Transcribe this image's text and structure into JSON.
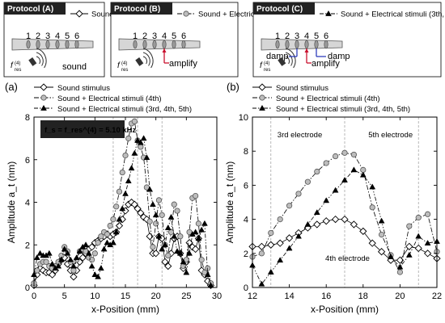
{
  "protocols": [
    {
      "tag": "Protocol (A)",
      "legend": "Sound stimulus",
      "electrodes": [
        "1",
        "2",
        "3",
        "4",
        "5",
        "6"
      ],
      "label_fres": "f",
      "label_fres_sub": "res",
      "label_fres_sup": "(4)",
      "sound_label": "sound"
    },
    {
      "tag": "Protocol (B)",
      "legend": "Sound + Electrical stimuli (4th)",
      "electrodes": [
        "1",
        "2",
        "3",
        "4",
        "5",
        "6"
      ],
      "label_fres": "f",
      "label_fres_sub": "res",
      "label_fres_sup": "(4)",
      "amplify_label": "amplify"
    },
    {
      "tag": "Protocol (C)",
      "legend": "Sound + Electrical stimuli (3th, 4th, 5th)",
      "electrodes": [
        "1",
        "2",
        "3",
        "4",
        "5",
        "6"
      ],
      "label_fres": "f",
      "label_fres_sub": "res",
      "label_fres_sup": "(4)",
      "amplify_label": "amplify",
      "damp_left": "damp",
      "damp_right": "damp"
    }
  ],
  "colors": {
    "amplify": "#c8102e",
    "damp": "#1f2fb8",
    "tag_bg": "#222222",
    "grey_marker": "#bdbdbd"
  },
  "chart_data": [
    {
      "panel": "(a)",
      "type": "line",
      "xlabel": "x-Position (mm)",
      "ylabel": "Amplitude a_t (nm)",
      "xlim": [
        0,
        30
      ],
      "ylim": [
        0,
        8
      ],
      "xticks": [
        0,
        5,
        10,
        15,
        20,
        25,
        30
      ],
      "yticks": [
        0,
        2,
        4,
        6,
        8
      ],
      "freq_label": "f_s = f_res^(4) = 5.10 kHz",
      "vlines": [
        13,
        17,
        21
      ],
      "legend": [
        "Sound stimulus",
        "Sound + Electrical stimuli (4th)",
        "Sound + Electrical stimuli (3rd, 4th, 5th)"
      ],
      "series": [
        {
          "name": "Sound stimulus",
          "marker": "diamond",
          "x": [
            0,
            0.5,
            1,
            1.5,
            2,
            2.5,
            3,
            3.5,
            4,
            4.5,
            5,
            5.5,
            6,
            6.5,
            7,
            7.5,
            8,
            8.5,
            9,
            9.5,
            10,
            10.5,
            11,
            11.5,
            12,
            12.5,
            13,
            13.5,
            14,
            14.5,
            15,
            15.5,
            16,
            16.5,
            17,
            17.5,
            18,
            18.5,
            19,
            19.5,
            20,
            20.5,
            21,
            21.5,
            22,
            22.5,
            23,
            23.5,
            24,
            24.5,
            25,
            25.5,
            26,
            26.5,
            27,
            27.5,
            28,
            28.5,
            29
          ],
          "y": [
            0.1,
            0.6,
            0.9,
            0.8,
            0.7,
            0.7,
            0.6,
            0.8,
            1.1,
            1.3,
            1.4,
            1.1,
            0.8,
            0.5,
            0.8,
            1.2,
            1.4,
            1.6,
            1.8,
            1.9,
            2.1,
            2.2,
            2.3,
            2.4,
            2.5,
            2.4,
            2.5,
            2.6,
            2.9,
            3.2,
            3.6,
            3.9,
            4.0,
            3.9,
            3.7,
            3.5,
            3.3,
            3.2,
            2.4,
            1.6,
            1.6,
            2.4,
            2.3,
            1.2,
            1.0,
            1.6,
            2.3,
            2.4,
            1.6,
            0.9,
            1.2,
            2.1,
            1.9,
            1.8,
            2.3,
            0.8,
            0.6,
            0.3,
            0.1
          ]
        },
        {
          "name": "Sound + Electrical stimuli (4th)",
          "marker": "circle",
          "x": [
            0,
            0.5,
            1,
            1.5,
            2,
            2.5,
            3,
            3.5,
            4,
            4.5,
            5,
            5.5,
            6,
            6.5,
            7,
            7.5,
            8,
            8.5,
            9,
            9.5,
            10,
            10.5,
            11,
            11.5,
            12,
            12.5,
            13,
            13.5,
            14,
            14.5,
            15,
            15.5,
            16,
            16.5,
            17,
            17.5,
            18,
            18.5,
            19,
            19.5,
            20,
            20.5,
            21,
            21.5,
            22,
            22.5,
            23,
            23.5,
            24,
            24.5,
            25,
            25.5,
            26,
            26.5,
            27,
            27.5,
            28,
            28.5,
            29
          ],
          "y": [
            0.2,
            0.8,
            1.1,
            1.2,
            1.2,
            1.0,
            0.9,
            1.0,
            1.2,
            1.5,
            1.9,
            1.7,
            1.2,
            0.8,
            1.3,
            1.7,
            1.8,
            1.7,
            1.4,
            1.3,
            1.6,
            2.1,
            2.4,
            2.6,
            2.5,
            2.9,
            3.2,
            3.8,
            4.5,
            5.4,
            6.2,
            7.0,
            7.7,
            7.8,
            6.9,
            6.6,
            6.1,
            4.7,
            3.1,
            1.9,
            3.0,
            4.1,
            3.4,
            2.0,
            1.5,
            2.6,
            3.9,
            3.6,
            2.4,
            1.0,
            1.3,
            2.6,
            4.2,
            4.3,
            3.0,
            1.3,
            0.7,
            0.9,
            0.2
          ]
        },
        {
          "name": "Sound + Electrical stimuli (3rd, 4th, 5th)",
          "marker": "triangle",
          "x": [
            0,
            0.5,
            1,
            1.5,
            2,
            2.5,
            3,
            3.5,
            4,
            4.5,
            5,
            5.5,
            6,
            6.5,
            7,
            7.5,
            8,
            8.5,
            9,
            9.5,
            10,
            10.5,
            11,
            11.5,
            12,
            12.5,
            13,
            13.5,
            14,
            14.5,
            15,
            15.5,
            16,
            16.5,
            17,
            17.5,
            18,
            18.5,
            19,
            19.5,
            20,
            20.5,
            21,
            21.5,
            22,
            22.5,
            23,
            23.5,
            24,
            24.5,
            25,
            25.5,
            26,
            26.5,
            27,
            27.5,
            28,
            28.5,
            29
          ],
          "y": [
            0.6,
            1.4,
            1.6,
            1.5,
            1.5,
            1.6,
            1.1,
            0.9,
            1.0,
            1.3,
            1.8,
            1.6,
            1.3,
            1.0,
            1.4,
            1.7,
            1.9,
            2.0,
            1.6,
            1.0,
            0.6,
            0.5,
            0.9,
            1.8,
            2.1,
            2.0,
            2.1,
            2.6,
            3.2,
            3.7,
            4.4,
            5.0,
            5.6,
            6.3,
            6.9,
            6.8,
            7.0,
            6.1,
            4.6,
            3.9,
            3.4,
            2.4,
            1.8,
            2.0,
            2.8,
            3.3,
            2.4,
            1.7,
            1.6,
            1.2,
            0.7,
            1.6,
            2.5,
            2.6,
            2.3,
            2.7,
            3.0,
            0.6,
            0.1
          ]
        }
      ]
    },
    {
      "panel": "(b)",
      "type": "line",
      "xlabel": "x-Position (mm)",
      "ylabel": "Amplitude a_t (nm)",
      "xlim": [
        12,
        22
      ],
      "ylim": [
        0,
        10
      ],
      "xticks": [
        12,
        14,
        16,
        18,
        20,
        22
      ],
      "yticks": [
        0,
        2,
        4,
        6,
        8,
        10
      ],
      "vlines": [
        13,
        17,
        21
      ],
      "annotations": [
        "3rd electrode",
        "5th electrode",
        "4th electrode"
      ],
      "legend": [
        "Sound stimulus",
        "Sound + Electrical stimuli (4th)",
        "Sound + Electrical stimuli (3rd, 4th, 5th)"
      ],
      "series": [
        {
          "name": "Sound stimulus",
          "marker": "diamond",
          "x": [
            12,
            12.5,
            13,
            13.5,
            14,
            14.5,
            15,
            15.5,
            16,
            16.5,
            17,
            17.5,
            18,
            18.5,
            19,
            19.5,
            20,
            20.5,
            21,
            21.5,
            22
          ],
          "y": [
            2.4,
            2.4,
            2.5,
            2.6,
            2.9,
            3.2,
            3.5,
            3.7,
            3.9,
            4.0,
            4.0,
            3.7,
            3.3,
            2.6,
            2.1,
            1.6,
            1.6,
            2.4,
            2.3,
            2.0,
            1.7
          ]
        },
        {
          "name": "Sound + Electrical stimuli (4th)",
          "marker": "circle",
          "x": [
            12,
            12.5,
            13,
            13.5,
            14,
            14.5,
            15,
            15.5,
            16,
            16.5,
            17,
            17.5,
            18,
            18.5,
            19,
            19.5,
            20,
            20.5,
            21,
            21.5,
            22
          ],
          "y": [
            1.8,
            2.0,
            3.2,
            4.0,
            4.8,
            5.5,
            6.2,
            6.8,
            7.3,
            7.7,
            7.9,
            7.8,
            6.9,
            4.7,
            3.1,
            1.9,
            0.9,
            3.6,
            4.1,
            4.3,
            2.1
          ]
        },
        {
          "name": "Sound + Electrical stimuli (3rd, 4th, 5th)",
          "marker": "triangle",
          "x": [
            12,
            12.5,
            13,
            13.5,
            14,
            14.5,
            15,
            15.5,
            16,
            16.5,
            17,
            17.5,
            18,
            18.5,
            19,
            19.5,
            20,
            20.5,
            21,
            21.5,
            22
          ],
          "y": [
            1.3,
            0.2,
            0.9,
            1.6,
            2.3,
            3.0,
            3.7,
            4.4,
            5.1,
            5.7,
            6.3,
            6.9,
            6.6,
            5.9,
            3.9,
            1.8,
            1.2,
            1.9,
            3.0,
            2.6,
            2.7
          ]
        }
      ]
    }
  ]
}
